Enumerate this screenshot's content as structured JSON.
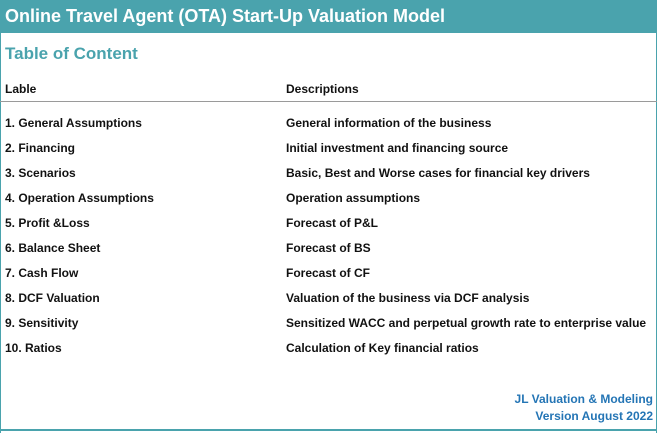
{
  "header": {
    "title": "Online Travel Agent (OTA) Start-Up Valuation Model"
  },
  "toc": {
    "title": "Table of Content",
    "columns": [
      "Lable",
      "Descriptions"
    ],
    "rows": [
      {
        "label": "1. General Assumptions",
        "description": "General information of the business"
      },
      {
        "label": "2. Financing",
        "description": "Initial investment and financing source"
      },
      {
        "label": "3. Scenarios",
        "description": "Basic, Best and Worse cases for financial key drivers"
      },
      {
        "label": "4. Operation Assumptions",
        "description": "Operation assumptions"
      },
      {
        "label": "5. Profit &Loss",
        "description": "Forecast of P&L"
      },
      {
        "label": "6. Balance Sheet",
        "description": "Forecast of BS"
      },
      {
        "label": "7. Cash Flow",
        "description": "Forecast of CF"
      },
      {
        "label": "8. DCF Valuation",
        "description": "Valuation of the business via DCF analysis"
      },
      {
        "label": "9. Sensitivity",
        "description": "Sensitized WACC and perpetual growth rate to enterprise value"
      },
      {
        "label": "10. Ratios",
        "description": "Calculation of Key financial ratios"
      }
    ]
  },
  "footer": {
    "author": "JL Valuation & Modeling",
    "version": "Version August 2022"
  },
  "colors": {
    "accent": "#4aa3ad",
    "footer_text": "#2475b5"
  }
}
